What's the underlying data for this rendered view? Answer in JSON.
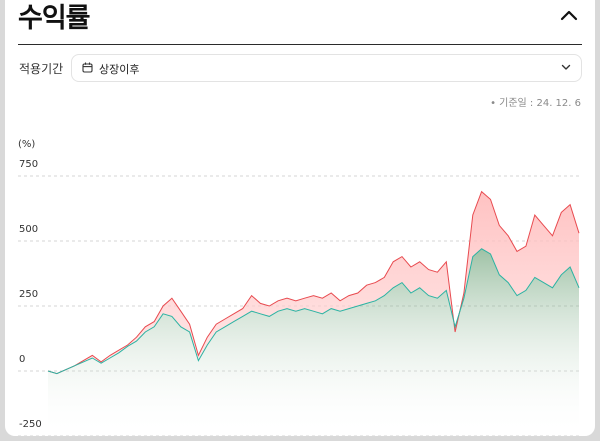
{
  "header": {
    "title": "수익률"
  },
  "period": {
    "label": "적용기간",
    "value": "상장이후"
  },
  "base_date": "• 기준일 : 24. 12. 6",
  "chart_data": {
    "type": "area",
    "unit_label": "(%)",
    "title": "",
    "xlabel": "",
    "ylabel": "",
    "ylim": [
      -250,
      750
    ],
    "yticks": [
      750,
      500,
      250,
      0,
      -250
    ],
    "grid": true,
    "x_index": "sample number (evenly spaced in time, no axis labels shown)",
    "series": [
      {
        "values": [
          0,
          -10,
          5,
          20,
          40,
          60,
          35,
          60,
          80,
          100,
          130,
          170,
          190,
          250,
          280,
          230,
          180,
          60,
          130,
          180,
          200,
          220,
          240,
          290,
          260,
          250,
          270,
          280,
          270,
          280,
          290,
          280,
          300,
          270,
          290,
          300,
          330,
          340,
          360,
          420,
          440,
          400,
          420,
          390,
          380,
          420,
          150,
          300,
          600,
          690,
          660,
          560,
          520,
          460,
          480,
          600,
          560,
          520,
          610,
          640,
          530
        ],
        "color": "#e84a4f"
      },
      {
        "values": [
          0,
          -10,
          5,
          20,
          35,
          50,
          30,
          50,
          70,
          95,
          115,
          150,
          170,
          220,
          210,
          170,
          150,
          40,
          100,
          150,
          170,
          190,
          210,
          230,
          220,
          210,
          230,
          240,
          230,
          240,
          230,
          220,
          240,
          230,
          240,
          250,
          260,
          270,
          290,
          320,
          340,
          300,
          320,
          290,
          280,
          310,
          170,
          280,
          440,
          470,
          450,
          370,
          340,
          290,
          310,
          360,
          340,
          320,
          370,
          400,
          320
        ],
        "color": "#2bb3a3"
      }
    ]
  }
}
